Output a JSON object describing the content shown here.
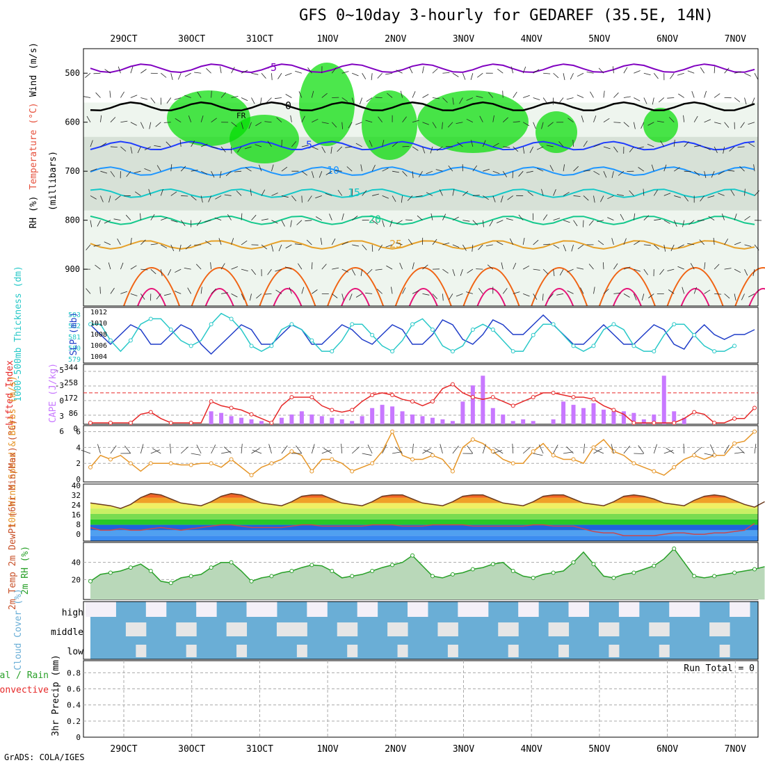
{
  "title": "GFS 0~10day 3-hourly for GEDAREF (35.5E, 14N)",
  "credit": "GrADS: COLA/IGES",
  "dates": [
    "29OCT",
    "30OCT",
    "31OCT",
    "1NOV",
    "2NOV",
    "3NOV",
    "4NOV",
    "5NOV",
    "6NOV",
    "7NOV"
  ],
  "colors": {
    "rh_green": "#00dd00",
    "rh_grey": "#c8d4c8",
    "wind_dark": "#222222",
    "t_minus5": "#8000c0",
    "t_0": "#000000",
    "t5": "#1e3cff",
    "t10": "#1e96ff",
    "t15": "#14c8c8",
    "t20": "#14c88c",
    "t25": "#e6a028",
    "t30": "#f06414",
    "t35": "#e61478",
    "slp": "#1e3cc8",
    "thickness": "#28c8c8",
    "lifted": "#e62828",
    "cape": "#c878ff",
    "wind10": "#e69628",
    "rh2m": "#28a028",
    "cloud": "#6aaed6",
    "precip_total": "#28a028",
    "precip_conv": "#e62828"
  },
  "chart_data": [
    {
      "type": "heatmap",
      "panel": "upper-air",
      "ylabels": {
        "wind": "Wind (m/s)",
        "temperature": "Temperature (°C)",
        "rh": "RH (%)",
        "axis": "(millibars)"
      },
      "yaxis": {
        "ticks": [
          500,
          600,
          700,
          800,
          900
        ],
        "ylim": [
          450,
          975
        ]
      },
      "isotherms": [
        {
          "label": "-5",
          "level": 490
        },
        {
          "label": "0",
          "level": 570
        },
        {
          "label": "FR",
          "level": 590
        },
        {
          "label": "5",
          "level": 650
        },
        {
          "label": "10",
          "level": 700
        },
        {
          "label": "15",
          "level": 745
        },
        {
          "label": "20",
          "level": 800
        },
        {
          "label": "25",
          "level": 850
        }
      ],
      "rh_contours": [
        "30",
        "50",
        "70",
        "90"
      ]
    },
    {
      "type": "line",
      "panel": "slp-thickness",
      "ylabel_left": "1000-500mb Thickness (dm)",
      "ylabel_right": "SLP (mb)",
      "left_ticks": [
        "583",
        "582",
        "581",
        "580",
        "579"
      ],
      "right_ticks": [
        "1012",
        "1010",
        "1008",
        "1006",
        "1004"
      ],
      "series": [
        {
          "name": "SLP",
          "values": [
            1010,
            1008,
            1006,
            1008,
            1010,
            1009,
            1006,
            1006,
            1008,
            1010,
            1009,
            1006,
            1004,
            1006,
            1008,
            1010,
            1009,
            1006,
            1006,
            1008,
            1010,
            1009,
            1006,
            1006,
            1008,
            1010,
            1009,
            1007,
            1006,
            1008,
            1010,
            1009,
            1006,
            1006,
            1008,
            1011,
            1010,
            1007,
            1006,
            1008,
            1011,
            1010,
            1008,
            1008,
            1010,
            1012,
            1010,
            1008,
            1006,
            1006,
            1008,
            1010,
            1008,
            1006,
            1006,
            1008,
            1010,
            1009,
            1006,
            1005,
            1008,
            1010,
            1008,
            1007,
            1008,
            1008,
            1009
          ]
        },
        {
          "name": "Thickness",
          "values": [
            582,
            582,
            580.5,
            579.5,
            580.5,
            582,
            582.5,
            582.5,
            581.5,
            580.5,
            580,
            580.5,
            582,
            583,
            582.5,
            581.5,
            580,
            579.5,
            580,
            581.5,
            582,
            581.5,
            580.5,
            579.5,
            579.5,
            580.5,
            582,
            582,
            581,
            580,
            579.5,
            580.5,
            582,
            582.5,
            581.5,
            580,
            579.5,
            580,
            581.5,
            582,
            581.5,
            580.5,
            579.5,
            579.5,
            581,
            582,
            582,
            581,
            580,
            579.5,
            580,
            581.5,
            582,
            581.5,
            580,
            579.5,
            579.5,
            581,
            582,
            582,
            581,
            580,
            579.5,
            579.5,
            580
          ]
        }
      ]
    },
    {
      "type": "bar",
      "panel": "lifted-cape",
      "ylabel_left": "Lifted Index",
      "ylabel_right": "CAPE (J/kg)",
      "left_ticks": [
        "-5",
        "-3",
        "0",
        "3",
        "6"
      ],
      "right_ticks": [
        "344",
        "258",
        "172",
        "86",
        "0"
      ],
      "series": [
        {
          "name": "CAPE",
          "values": [
            0,
            0,
            0,
            0,
            0,
            0,
            0,
            0,
            0,
            0,
            0,
            0,
            80,
            70,
            50,
            40,
            30,
            20,
            0,
            40,
            60,
            80,
            60,
            50,
            40,
            30,
            20,
            50,
            100,
            120,
            110,
            80,
            60,
            50,
            40,
            30,
            20,
            140,
            240,
            300,
            100,
            60,
            20,
            30,
            20,
            0,
            30,
            140,
            120,
            100,
            130,
            90,
            80,
            80,
            70,
            30,
            60,
            300,
            80,
            40,
            0,
            0,
            0,
            0,
            0,
            0,
            0
          ]
        },
        {
          "name": "Lifted Index",
          "values": [
            7,
            7,
            7,
            7,
            7,
            5,
            4.5,
            6,
            7,
            7,
            7,
            7,
            2,
            3,
            3.5,
            4,
            5,
            6,
            7,
            3,
            1,
            1,
            1,
            3,
            4,
            4.5,
            4,
            2,
            0.5,
            0,
            0.5,
            1.5,
            2,
            3,
            2,
            -1,
            -2,
            0,
            1,
            1.5,
            1,
            2,
            3,
            2,
            1,
            0,
            0,
            0.5,
            1,
            1,
            1.5,
            3,
            4,
            5,
            7,
            7,
            7,
            7,
            7,
            6,
            4.5,
            5,
            7,
            7,
            6,
            6,
            3.5
          ]
        }
      ]
    },
    {
      "type": "line",
      "panel": "wind10m",
      "ylabel_left": "10m Wind Speed & Barbs (m/s)",
      "left_ticks": [
        "6",
        "4",
        "2",
        "0"
      ],
      "series": [
        {
          "name": "10m Wind Speed",
          "values": [
            1.5,
            3,
            2.5,
            3,
            2,
            1,
            2,
            2,
            2,
            1.8,
            1.8,
            2,
            2,
            1.5,
            2.5,
            1.5,
            0.5,
            1.5,
            2,
            2.5,
            3.5,
            3,
            1,
            2.5,
            2.5,
            2,
            1,
            1.5,
            2,
            3.5,
            6,
            3,
            2.5,
            2.5,
            3,
            2.5,
            1,
            4,
            5,
            4.5,
            3.5,
            2.5,
            2,
            2,
            3.5,
            4.5,
            3,
            2.5,
            2.5,
            2,
            4,
            5,
            3.5,
            3,
            2,
            1.5,
            1,
            0.5,
            1.5,
            2.5,
            3,
            2.5,
            3,
            3,
            4.5,
            4.8,
            6
          ]
        }
      ]
    },
    {
      "type": "area",
      "panel": "temp2m",
      "ylabel_left": "2m Temp 2m DewPt (6hr Min/Max) (°C)",
      "left_ticks": [
        "40",
        "32",
        "24",
        "16",
        "8",
        "0"
      ],
      "series": [
        {
          "name": "2m Temp",
          "values": [
            28,
            27,
            26,
            24,
            27,
            32,
            35,
            34,
            31,
            28,
            27,
            26,
            29,
            33,
            35,
            34,
            31,
            28,
            27,
            26,
            29,
            33,
            34,
            34,
            31,
            28,
            27,
            26,
            29,
            33,
            34,
            34,
            31,
            28,
            27,
            26,
            29,
            33,
            34,
            34,
            31,
            28,
            27,
            26,
            29,
            33,
            34,
            34,
            31,
            28,
            27,
            26,
            29,
            33,
            34,
            33,
            31,
            28,
            27,
            26,
            30,
            33,
            34,
            33,
            30,
            27,
            25,
            29
          ]
        },
        {
          "name": "2m DewPt",
          "values": [
            10,
            8,
            8,
            9,
            8,
            8,
            9,
            10,
            9,
            8,
            9,
            10,
            11,
            12,
            12,
            11,
            10,
            10,
            10,
            10,
            11,
            12,
            12,
            11,
            11,
            11,
            11,
            11,
            12,
            12,
            12,
            11,
            11,
            11,
            12,
            12,
            12,
            12,
            11,
            11,
            11,
            11,
            11,
            11,
            12,
            12,
            11,
            11,
            11,
            9,
            7,
            6,
            6,
            4,
            4,
            4,
            4,
            5,
            6,
            6,
            5,
            5,
            6,
            6,
            7,
            8,
            13
          ]
        }
      ]
    },
    {
      "type": "area",
      "panel": "rh2m",
      "ylabel_left": "2m RH (%)",
      "left_ticks": [
        "40",
        "20"
      ],
      "series": [
        {
          "name": "2m RH",
          "values": [
            18,
            26,
            28,
            30,
            34,
            38,
            30,
            18,
            16,
            22,
            24,
            26,
            34,
            40,
            40,
            30,
            18,
            22,
            24,
            28,
            30,
            34,
            37,
            36,
            30,
            22,
            24,
            26,
            30,
            34,
            37,
            40,
            48,
            36,
            24,
            22,
            26,
            28,
            32,
            34,
            38,
            40,
            30,
            24,
            22,
            26,
            28,
            30,
            40,
            52,
            38,
            24,
            22,
            26,
            28,
            32,
            36,
            44,
            56,
            40,
            24,
            22,
            24,
            26,
            28,
            30,
            32,
            35
          ]
        }
      ]
    },
    {
      "type": "heatmap",
      "panel": "cloud",
      "ylabel_left": "Cloud Cover (%)",
      "rows": [
        "high",
        "middle",
        "low"
      ]
    },
    {
      "type": "line",
      "panel": "precip",
      "ylabel_left": "3hr Precip (mm)",
      "legend": [
        "Total / Rain",
        "Convective"
      ],
      "run_total": "Run Total = 0",
      "left_ticks": [
        "0.8",
        "0.6",
        "0.4",
        "0.2",
        "0"
      ],
      "series": [
        {
          "name": "Total / Rain",
          "values": []
        },
        {
          "name": "Convective",
          "values": []
        }
      ]
    }
  ]
}
